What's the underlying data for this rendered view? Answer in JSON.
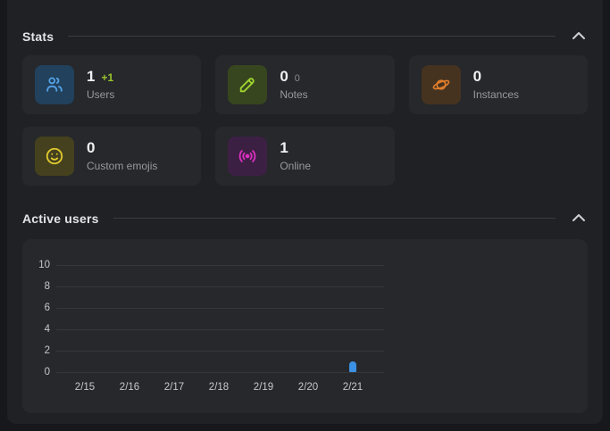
{
  "theme": {
    "outer_background": "#17181b",
    "panel_background": "#1f2124",
    "card_background": "#26282b",
    "heading_color": "#e3e4e6",
    "label_color": "#97999e",
    "positive_diff_color": "#9ac42f",
    "accent_users": "#55a1e8",
    "accent_notes": "#a0d52f",
    "accent_instances": "#de7d2d",
    "accent_emojis": "#e0c92f",
    "accent_online": "#dc2fc0"
  },
  "stats_section": {
    "title": "Stats",
    "cards": [
      {
        "id": "users",
        "icon": "users-icon",
        "value": "1",
        "diff": "+1",
        "label": "Users"
      },
      {
        "id": "notes",
        "icon": "pencil-icon",
        "value": "0",
        "diff": "0",
        "label": "Notes"
      },
      {
        "id": "instances",
        "icon": "planet-icon",
        "value": "0",
        "label": "Instances"
      },
      {
        "id": "custom-emojis",
        "icon": "smiley-icon",
        "value": "0",
        "label": "Custom emojis"
      },
      {
        "id": "online",
        "icon": "broadcast-icon",
        "value": "1",
        "label": "Online"
      }
    ]
  },
  "active_users_section": {
    "title": "Active users"
  },
  "chart_data": {
    "type": "bar",
    "title": "Active users",
    "categories": [
      "2/15",
      "2/16",
      "2/17",
      "2/18",
      "2/19",
      "2/20",
      "2/21"
    ],
    "series": [
      {
        "name": "Active users",
        "values": [
          0,
          0,
          0,
          0,
          0,
          0,
          1
        ]
      }
    ],
    "yticks": [
      0,
      2,
      4,
      6,
      8,
      10
    ],
    "ylim": [
      0,
      10
    ],
    "xlabel": "",
    "ylabel": "",
    "grid": true,
    "legend": false,
    "bar_color": "#3d91e4"
  }
}
